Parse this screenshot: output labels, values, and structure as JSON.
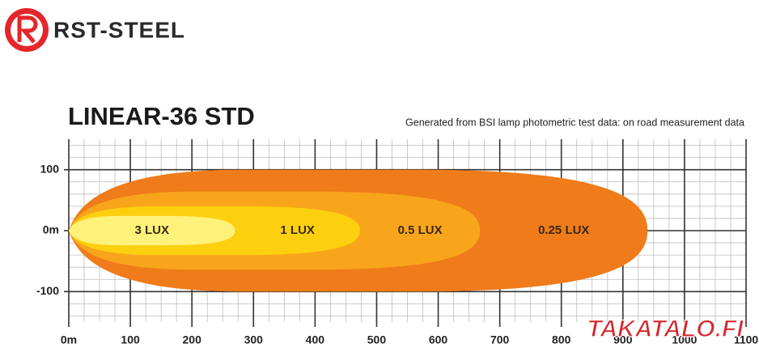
{
  "brand": "RST-STEEL",
  "watermark": "TAKATALO.FI",
  "chart_data": {
    "type": "beam",
    "title": "LINEAR-36 STD",
    "subtitle": "Generated from BSI lamp photometric test data: on road measurement data",
    "xlim": [
      0,
      1100
    ],
    "ylim": [
      -150,
      150
    ],
    "xticks": [
      {
        "value": 0,
        "label": "0m"
      },
      100,
      200,
      300,
      400,
      500,
      600,
      700,
      800,
      900,
      1000,
      1100
    ],
    "yticks": [
      100,
      {
        "value": 0,
        "label": "0m"
      },
      -100
    ],
    "grid": true,
    "zones": [
      {
        "name": "3 LUX",
        "color": "#fff27a",
        "reach": 270,
        "half_width": 24
      },
      {
        "name": "1 LUX",
        "color": "#fcd00f",
        "reach": 473,
        "half_width": 40
      },
      {
        "name": "0.5 LUX",
        "color": "#f8a51c",
        "reach": 668,
        "half_width": 64
      },
      {
        "name": "0.25 LUX",
        "color": "#ef7b1a",
        "reach": 940,
        "half_width": 100
      }
    ]
  }
}
